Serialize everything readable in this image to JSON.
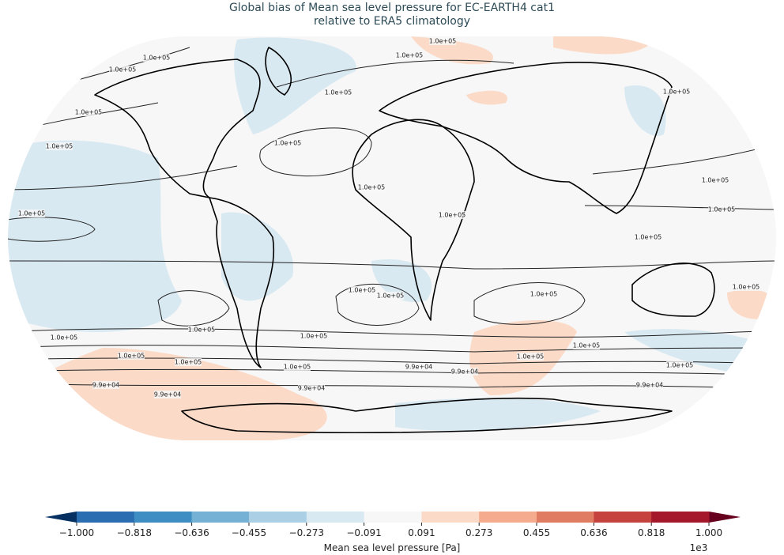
{
  "title": [
    "Global bias of Mean sea level pressure for EC-EARTH4 cat1",
    "relative to ERA5 climatology"
  ],
  "contour_labels": [
    "1.0e+05",
    "1.0e+05",
    "1.0e+05",
    "1.0e+05",
    "1.0e+05",
    "1.0e+05",
    "1.0e+05",
    "1.0e+05",
    "1.0e+05",
    "1.0e+05",
    "1.0e+05",
    "1.0e+05",
    "1.0e+05",
    "1.0e+05",
    "1.0e+05",
    "1.0e+05",
    "1.0e+05",
    "1.0e+05",
    "1.0e+05",
    "1.0e+05",
    "1.0e+05",
    "1.0e+05",
    "1.0e+05",
    "1.0e+05",
    "1.0e+05",
    "9.9e+04",
    "9.9e+04",
    "9.9e+04",
    "9.9e+04",
    "9.9e+04",
    "9.9e+04",
    "1.0e+05",
    "1.0e+05",
    "1.0e+05"
  ],
  "colorbar": {
    "label": "Mean sea level pressure [Pa]",
    "offset_label": "1e3",
    "under_color": "#053061",
    "over_color": "#67001f",
    "colors": [
      "#2a6db0",
      "#3f8ec3",
      "#75b1d5",
      "#abd0e5",
      "#d9e9f2",
      "#f7f7f7",
      "#fbdac8",
      "#f5ac8e",
      "#e07c61",
      "#c6423f",
      "#a5172b"
    ],
    "ticks": [
      {
        "value": -1.0,
        "label": "−1.000"
      },
      {
        "value": -0.818,
        "label": "−0.818"
      },
      {
        "value": -0.636,
        "label": "−0.636"
      },
      {
        "value": -0.455,
        "label": "−0.455"
      },
      {
        "value": -0.273,
        "label": "−0.273"
      },
      {
        "value": -0.091,
        "label": "−0.091"
      },
      {
        "value": 0.091,
        "label": "0.091"
      },
      {
        "value": 0.273,
        "label": "0.273"
      },
      {
        "value": 0.455,
        "label": "0.455"
      },
      {
        "value": 0.636,
        "label": "0.636"
      },
      {
        "value": 0.818,
        "label": "0.818"
      },
      {
        "value": 1.0,
        "label": "1.000"
      }
    ]
  }
}
